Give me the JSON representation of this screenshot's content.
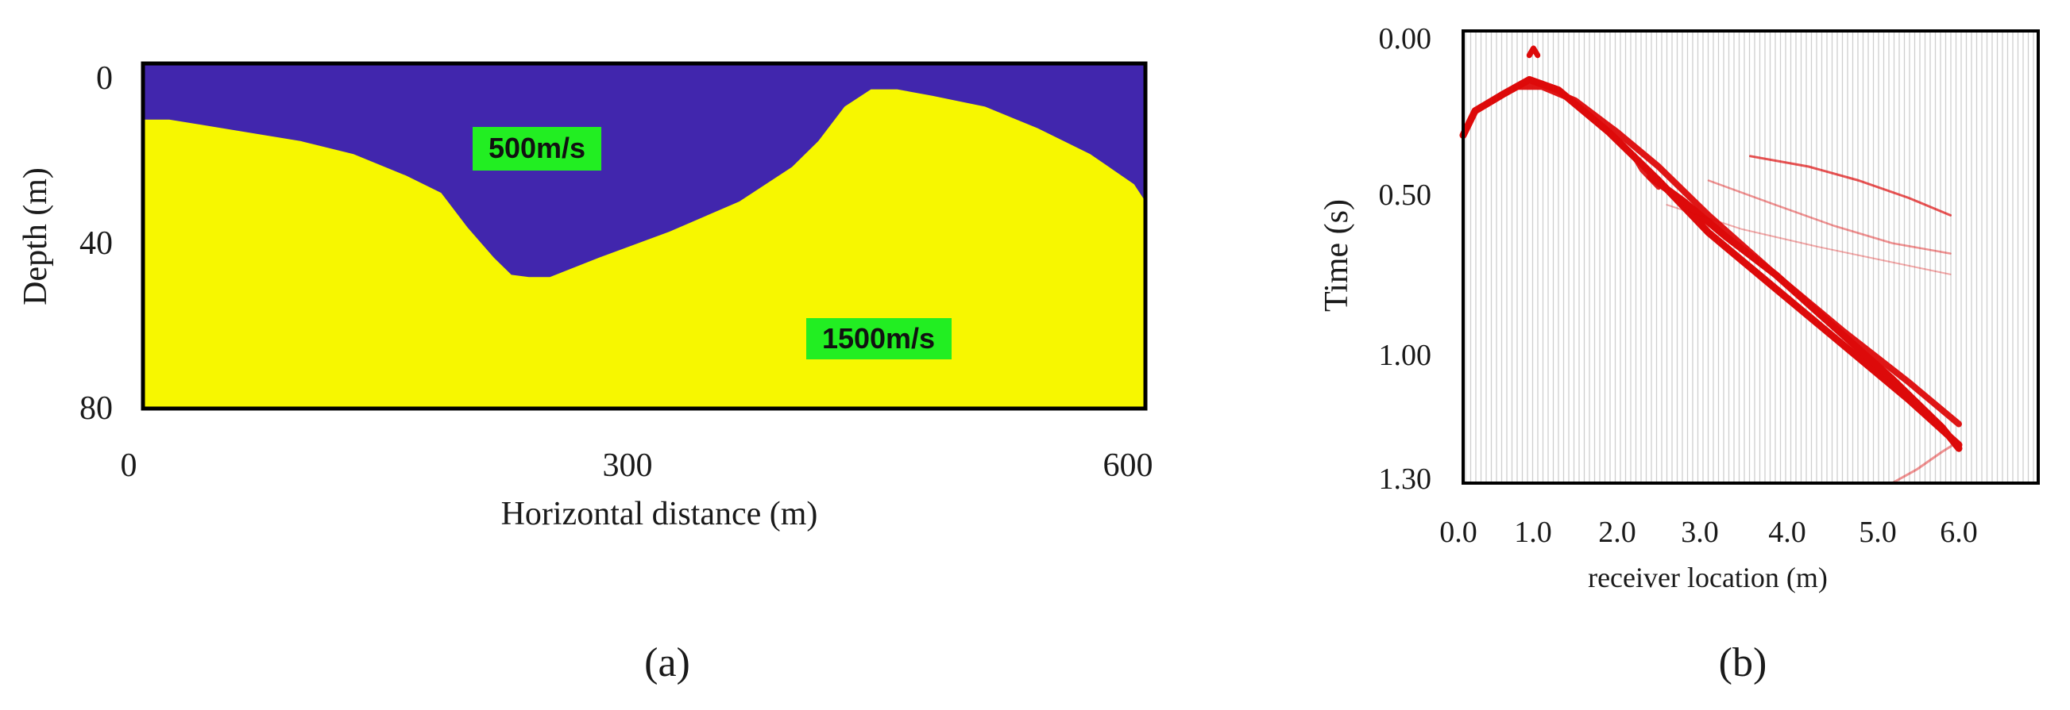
{
  "colors": {
    "upper_layer": "#4126ad",
    "lower_layer": "#f7f700",
    "label_box": "#22ee22",
    "wiggle_gray": "#b4b4b4",
    "event_red": "#dd0a0a",
    "frame": "#000000"
  },
  "chart_data": [
    {
      "type": "heatmap",
      "panel_label": "(a)",
      "xlabel": "Horizontal distance (m)",
      "ylabel": "Depth (m)",
      "xlim": [
        0,
        600
      ],
      "ylim": [
        80,
        0
      ],
      "x_ticks": [
        "0",
        "300",
        "600"
      ],
      "y_ticks": [
        "0",
        "40",
        "80"
      ],
      "layers": [
        {
          "name": "500m/s",
          "velocity_m_per_s": 500,
          "region": "above interface"
        },
        {
          "name": "1500m/s",
          "velocity_m_per_s": 1500,
          "region": "below interface"
        }
      ],
      "interface_depth": [
        [
          0,
          13
        ],
        [
          15,
          13
        ],
        [
          30,
          14
        ],
        [
          60,
          16
        ],
        [
          90,
          18
        ],
        [
          120,
          21
        ],
        [
          150,
          26
        ],
        [
          170,
          30
        ],
        [
          185,
          38
        ],
        [
          200,
          45
        ],
        [
          210,
          49
        ],
        [
          220,
          49.5
        ],
        [
          232,
          49.5
        ],
        [
          260,
          45
        ],
        [
          300,
          39
        ],
        [
          340,
          32
        ],
        [
          370,
          24
        ],
        [
          385,
          18
        ],
        [
          400,
          10
        ],
        [
          415,
          6
        ],
        [
          430,
          6
        ],
        [
          450,
          7.5
        ],
        [
          480,
          10
        ],
        [
          510,
          15
        ],
        [
          540,
          21
        ],
        [
          565,
          28
        ],
        [
          580,
          32
        ],
        [
          590,
          32
        ],
        [
          605,
          30
        ],
        [
          625,
          24
        ],
        [
          638,
          16
        ],
        [
          641,
          14
        ]
      ]
    },
    {
      "type": "scatter",
      "panel_label": "(b)",
      "xlabel": "receiver location  (m)",
      "ylabel": "Time (s)",
      "xlim": [
        -0.2,
        6.0
      ],
      "ylim": [
        1.3,
        0.0
      ],
      "x_ticks": [
        "0.0",
        "1.0",
        "2.0",
        "3.0",
        "4.0",
        "5.0",
        "6.0"
      ],
      "y_ticks": [
        "0.00",
        "0.50",
        "1.00",
        "1.30"
      ],
      "grid": true,
      "series": [
        {
          "x": [
            -0.2,
            0.2,
            0.55,
            0.85,
            1.2,
            1.8,
            2.4,
            3.0,
            3.8,
            4.6,
            5.4,
            6.0
          ],
          "y": [
            0.3,
            0.23,
            0.18,
            0.14,
            0.17,
            0.29,
            0.43,
            0.58,
            0.74,
            0.9,
            1.06,
            1.19
          ]
        },
        {
          "x": [
            0.7,
            1.0,
            1.4,
            1.9,
            2.4,
            3.0,
            3.8,
            4.6,
            5.4,
            6.0
          ],
          "y": [
            0.16,
            0.16,
            0.2,
            0.29,
            0.39,
            0.53,
            0.7,
            0.86,
            1.01,
            1.13
          ]
        },
        {
          "x": [
            2.3,
            2.7,
            3.2,
            3.8,
            4.5,
            5.2,
            5.8,
            6.0
          ],
          "y": [
            0.42,
            0.49,
            0.59,
            0.7,
            0.85,
            1.0,
            1.14,
            1.2
          ]
        },
        {
          "x": [
            2.1,
            2.2,
            2.4
          ],
          "y": [
            0.36,
            0.4,
            0.45
          ]
        },
        {
          "x": [
            0.85,
            0.9,
            0.95
          ],
          "y": [
            0.07,
            0.05,
            0.07
          ]
        },
        {
          "x": [
            3.5,
            4.2,
            4.8,
            5.4,
            5.9
          ],
          "y": [
            0.36,
            0.39,
            0.43,
            0.48,
            0.53
          ]
        },
        {
          "x": [
            3.0,
            3.8,
            4.5,
            5.2,
            5.9
          ],
          "y": [
            0.43,
            0.5,
            0.56,
            0.61,
            0.64
          ]
        },
        {
          "x": [
            2.5,
            3.4,
            4.3,
            5.1,
            5.9
          ],
          "y": [
            0.5,
            0.57,
            0.62,
            0.66,
            0.7
          ]
        },
        {
          "x": [
            5.2,
            5.5,
            5.8,
            6.0
          ],
          "y": [
            1.3,
            1.26,
            1.21,
            1.18
          ]
        }
      ]
    }
  ]
}
